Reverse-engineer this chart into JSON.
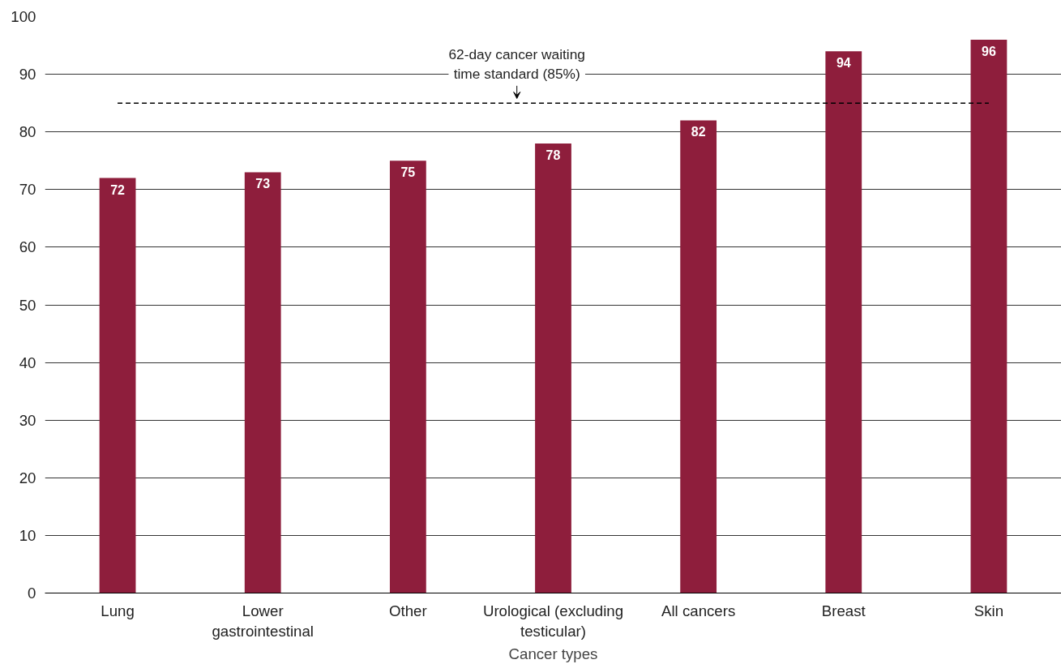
{
  "chart_data": {
    "type": "bar",
    "xlabel": "Cancer types",
    "categories": [
      "Lung",
      "Lower gastrointestinal",
      "Other",
      "Urological (excluding testicular)",
      "All cancers",
      "Breast",
      "Skin"
    ],
    "values": [
      72,
      73,
      75,
      78,
      82,
      94,
      96
    ],
    "color": "#8e1e3c",
    "data_labels": true,
    "ylim": [
      0,
      100
    ],
    "yticks": [
      0,
      10,
      20,
      30,
      40,
      50,
      60,
      70,
      80,
      90,
      100
    ],
    "grid": "y",
    "ref_lines": [
      {
        "axis": "y",
        "value": 85,
        "label": "62-day cancer waiting time standard (85%)",
        "color": "#000000",
        "line_style": "dashed"
      }
    ]
  }
}
